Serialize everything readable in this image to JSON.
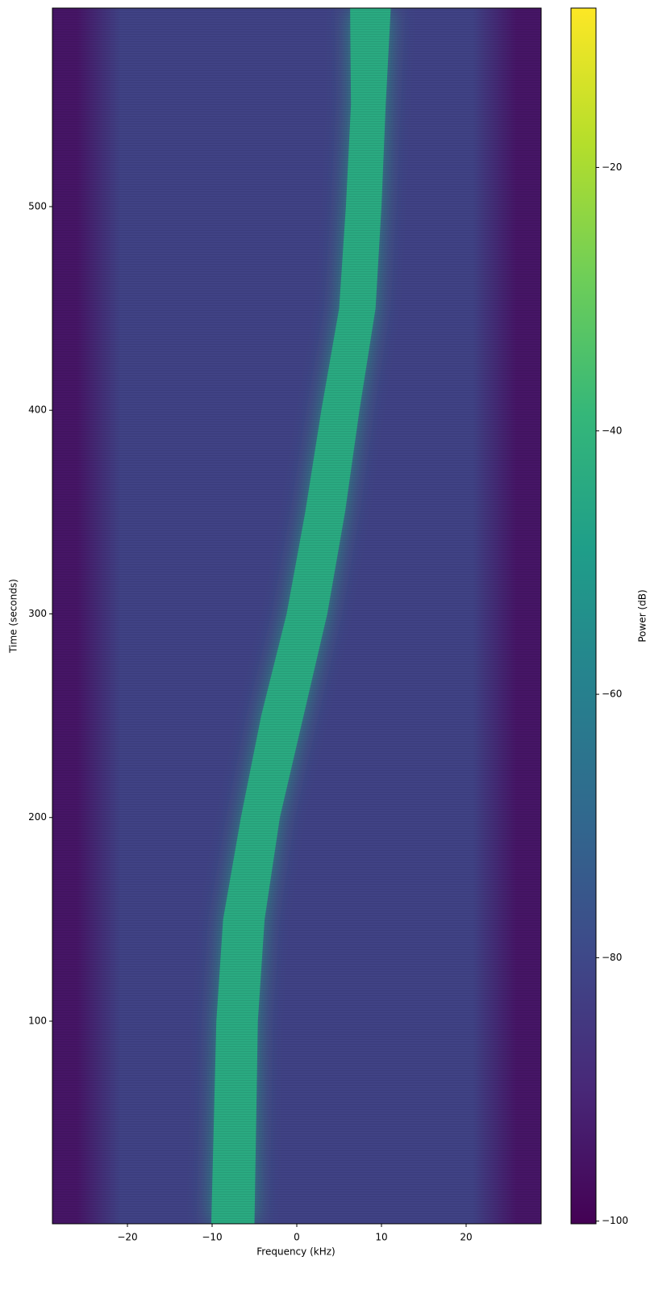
{
  "chart_data": {
    "type": "spectrogram",
    "xlabel": "Frequency (kHz)",
    "ylabel": "Time (seconds)",
    "colorbar_label": "Power (dB)",
    "colormap": "viridis",
    "xlim": [
      -28.86,
      28.86
    ],
    "ylim": [
      0.5,
      597.5
    ],
    "clim": [
      -100.2,
      -7.9
    ],
    "xticks": [
      {
        "value": -20,
        "label": "−20"
      },
      {
        "value": -10,
        "label": "−10"
      },
      0,
      10,
      20
    ],
    "yticks": [
      100,
      200,
      300,
      400,
      500
    ],
    "cticks": [
      {
        "value": -100,
        "label": "−100"
      },
      {
        "value": -80,
        "label": "−80"
      },
      {
        "value": -60,
        "label": "−60"
      },
      {
        "value": -40,
        "label": "−40"
      },
      {
        "value": -20,
        "label": "−20"
      }
    ],
    "noise_floor_db": -82,
    "edge_db": -95,
    "band_db": -44,
    "track": {
      "time": [
        0.5,
        50,
        100,
        150,
        200,
        250,
        300,
        350,
        400,
        450,
        500,
        550,
        597.5
      ],
      "low": [
        -10.1,
        -9.8,
        -9.5,
        -8.7,
        -6.6,
        -4.2,
        -1.2,
        1.0,
        2.9,
        5.0,
        5.8,
        6.4,
        6.3
      ],
      "high": [
        -5.0,
        -4.8,
        -4.6,
        -3.8,
        -2.0,
        0.8,
        3.6,
        5.7,
        7.4,
        9.3,
        10.0,
        10.5,
        11.1
      ]
    }
  }
}
